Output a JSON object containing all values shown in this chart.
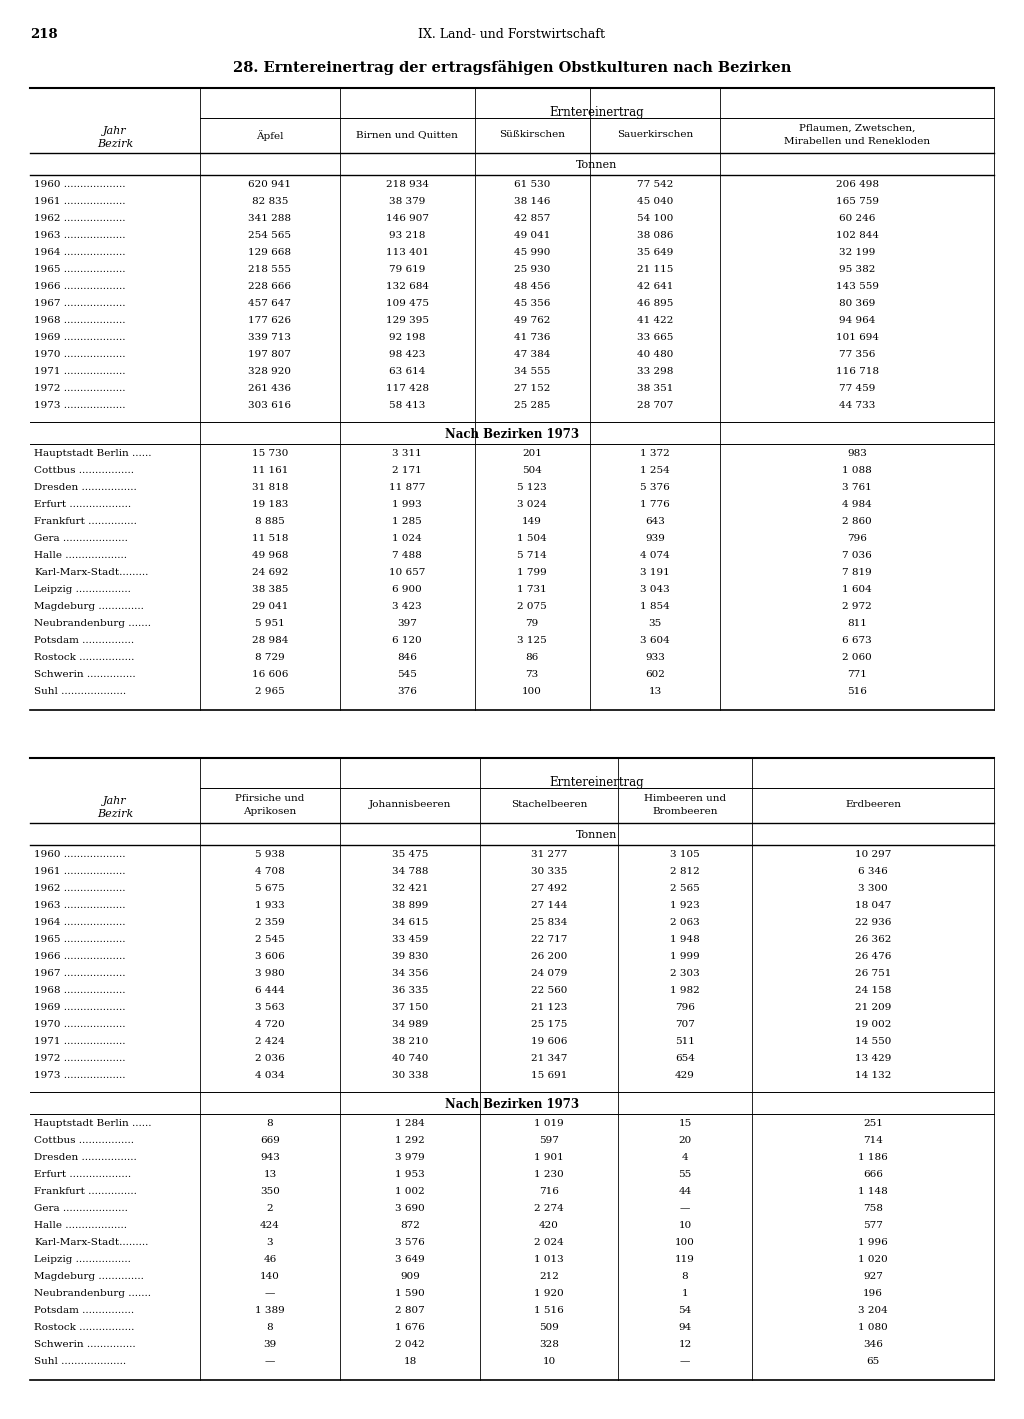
{
  "page_number": "218",
  "header": "IX. Land- und Forstwirtschaft",
  "title": "28. Erntereinertrag der ertragsfähigen Obstkulturen nach Bezirken",
  "table1_cols": [
    "Äpfel",
    "Birnen und Quitten",
    "Süßkirschen",
    "Sauerkirschen",
    "Pflaumen, Zwetschen,\nMirabellen und Renekloden"
  ],
  "table2_cols": [
    "Pfirsiche und\nAprikosen",
    "Johannisbeeren",
    "Stachelbeeren",
    "Himbeeren und\nBrombeeren",
    "Erdbeeren"
  ],
  "years": [
    "1960",
    "1961",
    "1962",
    "1963",
    "1964",
    "1965",
    "1966",
    "1967",
    "1968",
    "1969",
    "1970",
    "1971",
    "1972",
    "1973"
  ],
  "table1_year_data": [
    [
      "620 941",
      "218 934",
      "61 530",
      "77 542",
      "206 498"
    ],
    [
      "82 835",
      "38 379",
      "38 146",
      "45 040",
      "165 759"
    ],
    [
      "341 288",
      "146 907",
      "42 857",
      "54 100",
      "60 246"
    ],
    [
      "254 565",
      "93 218",
      "49 041",
      "38 086",
      "102 844"
    ],
    [
      "129 668",
      "113 401",
      "45 990",
      "35 649",
      "32 199"
    ],
    [
      "218 555",
      "79 619",
      "25 930",
      "21 115",
      "95 382"
    ],
    [
      "228 666",
      "132 684",
      "48 456",
      "42 641",
      "143 559"
    ],
    [
      "457 647",
      "109 475",
      "45 356",
      "46 895",
      "80 369"
    ],
    [
      "177 626",
      "129 395",
      "49 762",
      "41 422",
      "94 964"
    ],
    [
      "339 713",
      "92 198",
      "41 736",
      "33 665",
      "101 694"
    ],
    [
      "197 807",
      "98 423",
      "47 384",
      "40 480",
      "77 356"
    ],
    [
      "328 920",
      "63 614",
      "34 555",
      "33 298",
      "116 718"
    ],
    [
      "261 436",
      "117 428",
      "27 152",
      "38 351",
      "77 459"
    ],
    [
      "303 616",
      "58 413",
      "25 285",
      "28 707",
      "44 733"
    ]
  ],
  "bezirke": [
    "Hauptstadt Berlin ......",
    "Cottbus .................",
    "Dresden .................",
    "Erfurt ...................",
    "Frankfurt ...............",
    "Gera ....................",
    "Halle ...................",
    "Karl-Marx-Stadt.........",
    "Leipzig .................",
    "Magdeburg ..............",
    "Neubrandenburg .......",
    "Potsdam ................",
    "Rostock .................",
    "Schwerin ...............",
    "Suhl ...................."
  ],
  "table1_bezirk_data": [
    [
      "15 730",
      "3 311",
      "201",
      "1 372",
      "983"
    ],
    [
      "11 161",
      "2 171",
      "504",
      "1 254",
      "1 088"
    ],
    [
      "31 818",
      "11 877",
      "5 123",
      "5 376",
      "3 761"
    ],
    [
      "19 183",
      "1 993",
      "3 024",
      "1 776",
      "4 984"
    ],
    [
      "8 885",
      "1 285",
      "149",
      "643",
      "2 860"
    ],
    [
      "11 518",
      "1 024",
      "1 504",
      "939",
      "796"
    ],
    [
      "49 968",
      "7 488",
      "5 714",
      "4 074",
      "7 036"
    ],
    [
      "24 692",
      "10 657",
      "1 799",
      "3 191",
      "7 819"
    ],
    [
      "38 385",
      "6 900",
      "1 731",
      "3 043",
      "1 604"
    ],
    [
      "29 041",
      "3 423",
      "2 075",
      "1 854",
      "2 972"
    ],
    [
      "5 951",
      "397",
      "79",
      "35",
      "811"
    ],
    [
      "28 984",
      "6 120",
      "3 125",
      "3 604",
      "6 673"
    ],
    [
      "8 729",
      "846",
      "86",
      "933",
      "2 060"
    ],
    [
      "16 606",
      "545",
      "73",
      "602",
      "771"
    ],
    [
      "2 965",
      "376",
      "100",
      "13",
      "516"
    ]
  ],
  "table2_year_data": [
    [
      "5 938",
      "35 475",
      "31 277",
      "3 105",
      "10 297"
    ],
    [
      "4 708",
      "34 788",
      "30 335",
      "2 812",
      "6 346"
    ],
    [
      "5 675",
      "32 421",
      "27 492",
      "2 565",
      "3 300"
    ],
    [
      "1 933",
      "38 899",
      "27 144",
      "1 923",
      "18 047"
    ],
    [
      "2 359",
      "34 615",
      "25 834",
      "2 063",
      "22 936"
    ],
    [
      "2 545",
      "33 459",
      "22 717",
      "1 948",
      "26 362"
    ],
    [
      "3 606",
      "39 830",
      "26 200",
      "1 999",
      "26 476"
    ],
    [
      "3 980",
      "34 356",
      "24 079",
      "2 303",
      "26 751"
    ],
    [
      "6 444",
      "36 335",
      "22 560",
      "1 982",
      "24 158"
    ],
    [
      "3 563",
      "37 150",
      "21 123",
      "796",
      "21 209"
    ],
    [
      "4 720",
      "34 989",
      "25 175",
      "707",
      "19 002"
    ],
    [
      "2 424",
      "38 210",
      "19 606",
      "511",
      "14 550"
    ],
    [
      "2 036",
      "40 740",
      "21 347",
      "654",
      "13 429"
    ],
    [
      "4 034",
      "30 338",
      "15 691",
      "429",
      "14 132"
    ]
  ],
  "table2_bezirk_data": [
    [
      "8",
      "1 284",
      "1 019",
      "15",
      "251"
    ],
    [
      "669",
      "1 292",
      "597",
      "20",
      "714"
    ],
    [
      "943",
      "3 979",
      "1 901",
      "4",
      "1 186"
    ],
    [
      "13",
      "1 953",
      "1 230",
      "55",
      "666"
    ],
    [
      "350",
      "1 002",
      "716",
      "44",
      "1 148"
    ],
    [
      "2",
      "3 690",
      "2 274",
      "—",
      "758"
    ],
    [
      "424",
      "872",
      "420",
      "10",
      "577"
    ],
    [
      "3",
      "3 576",
      "2 024",
      "100",
      "1 996"
    ],
    [
      "46",
      "3 649",
      "1 013",
      "119",
      "1 020"
    ],
    [
      "140",
      "909",
      "212",
      "8",
      "927"
    ],
    [
      "—",
      "1 590",
      "1 920",
      "1",
      "196"
    ],
    [
      "1 389",
      "2 807",
      "1 516",
      "54",
      "3 204"
    ],
    [
      "8",
      "1 676",
      "509",
      "94",
      "1 080"
    ],
    [
      "39",
      "2 042",
      "328",
      "12",
      "346"
    ],
    [
      "—",
      "18",
      "10",
      "—",
      "65"
    ]
  ]
}
